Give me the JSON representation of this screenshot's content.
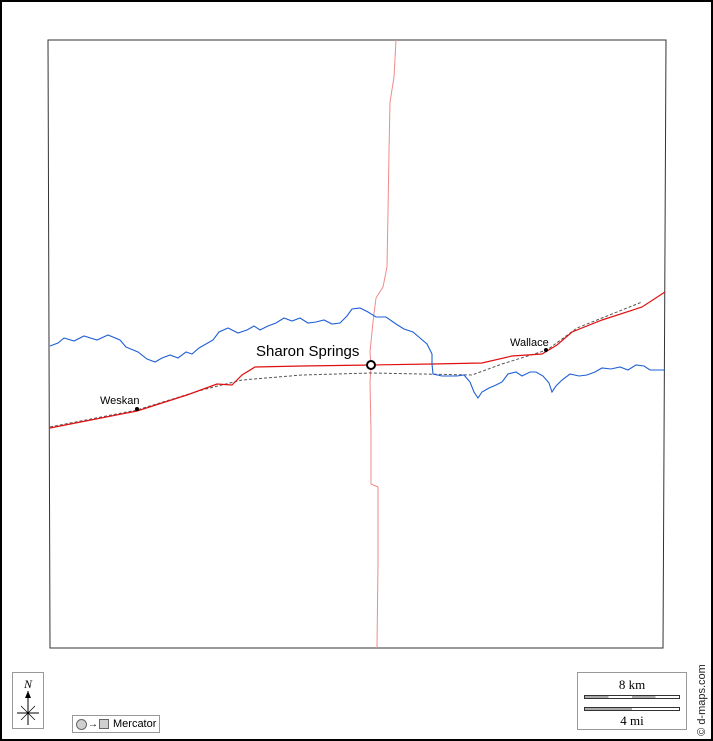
{
  "map": {
    "places": [
      {
        "name": "Sharon Springs",
        "kind": "county-seat"
      },
      {
        "name": "Wallace",
        "kind": "town"
      },
      {
        "name": "Weskan",
        "kind": "town"
      }
    ],
    "colors": {
      "river": "#1f5fd6",
      "main_road": "#e01010",
      "minor_road": "#f08a8a",
      "railroad": "#555555",
      "border": "#333333"
    }
  },
  "legend": {
    "north_label": "N",
    "projection_label": "Mercator",
    "scale_km": "8 km",
    "scale_mi": "4 mi"
  },
  "credit": "© d-maps.com"
}
